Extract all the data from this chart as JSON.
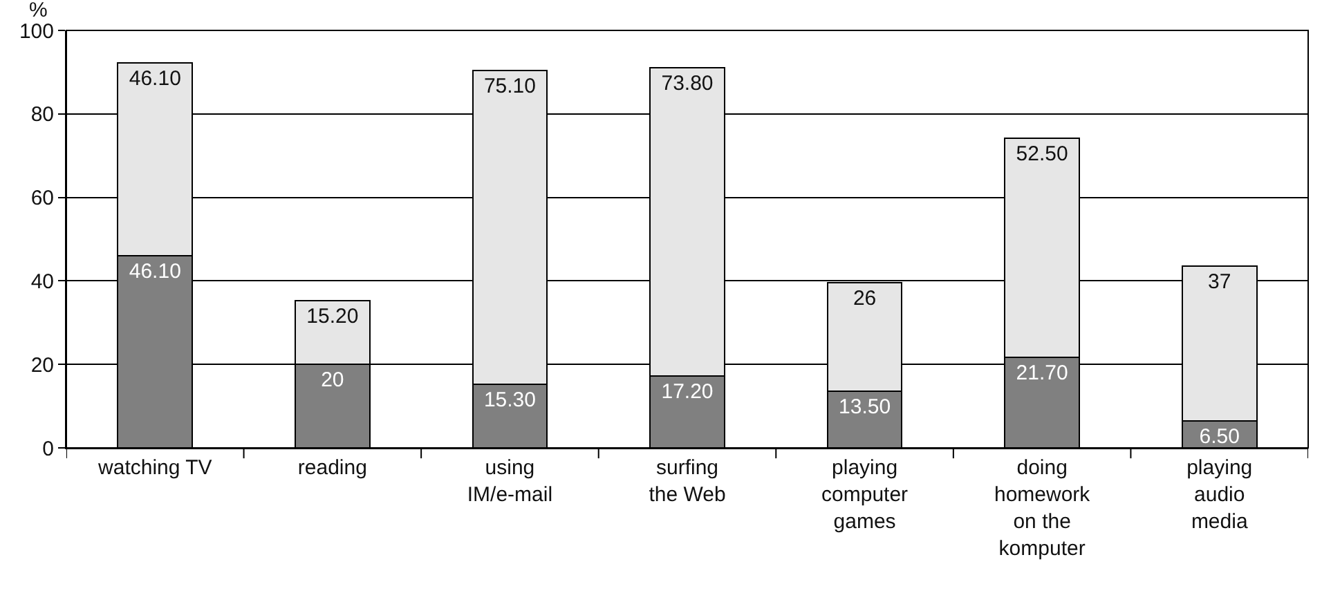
{
  "chart_data": {
    "type": "bar",
    "stacked": true,
    "ylabel": "%",
    "categories": [
      "watching TV",
      "reading",
      "using\nIM/e-mail",
      "surfing\nthe Web",
      "playing\ncomputer\ngames",
      "doing\nhomework\non the\nkomputer",
      "playing\naudio\nmedia"
    ],
    "series": [
      {
        "color": "#808080",
        "values": [
          46.1,
          20,
          15.3,
          17.2,
          13.5,
          21.7,
          6.5
        ],
        "value_labels": [
          "46.10",
          "20",
          "15.30",
          "17.20",
          "13.50",
          "21.70",
          "6.50"
        ]
      },
      {
        "color": "#e6e6e6",
        "values": [
          46.1,
          15.2,
          75.1,
          73.8,
          26,
          52.5,
          37
        ],
        "value_labels": [
          "46.10",
          "15.20",
          "75.10",
          "73.80",
          "26",
          "52.50",
          "37"
        ]
      }
    ],
    "ylim": [
      0,
      100
    ],
    "yticks": [
      0,
      20,
      40,
      60,
      80,
      100
    ],
    "grid": "y"
  }
}
